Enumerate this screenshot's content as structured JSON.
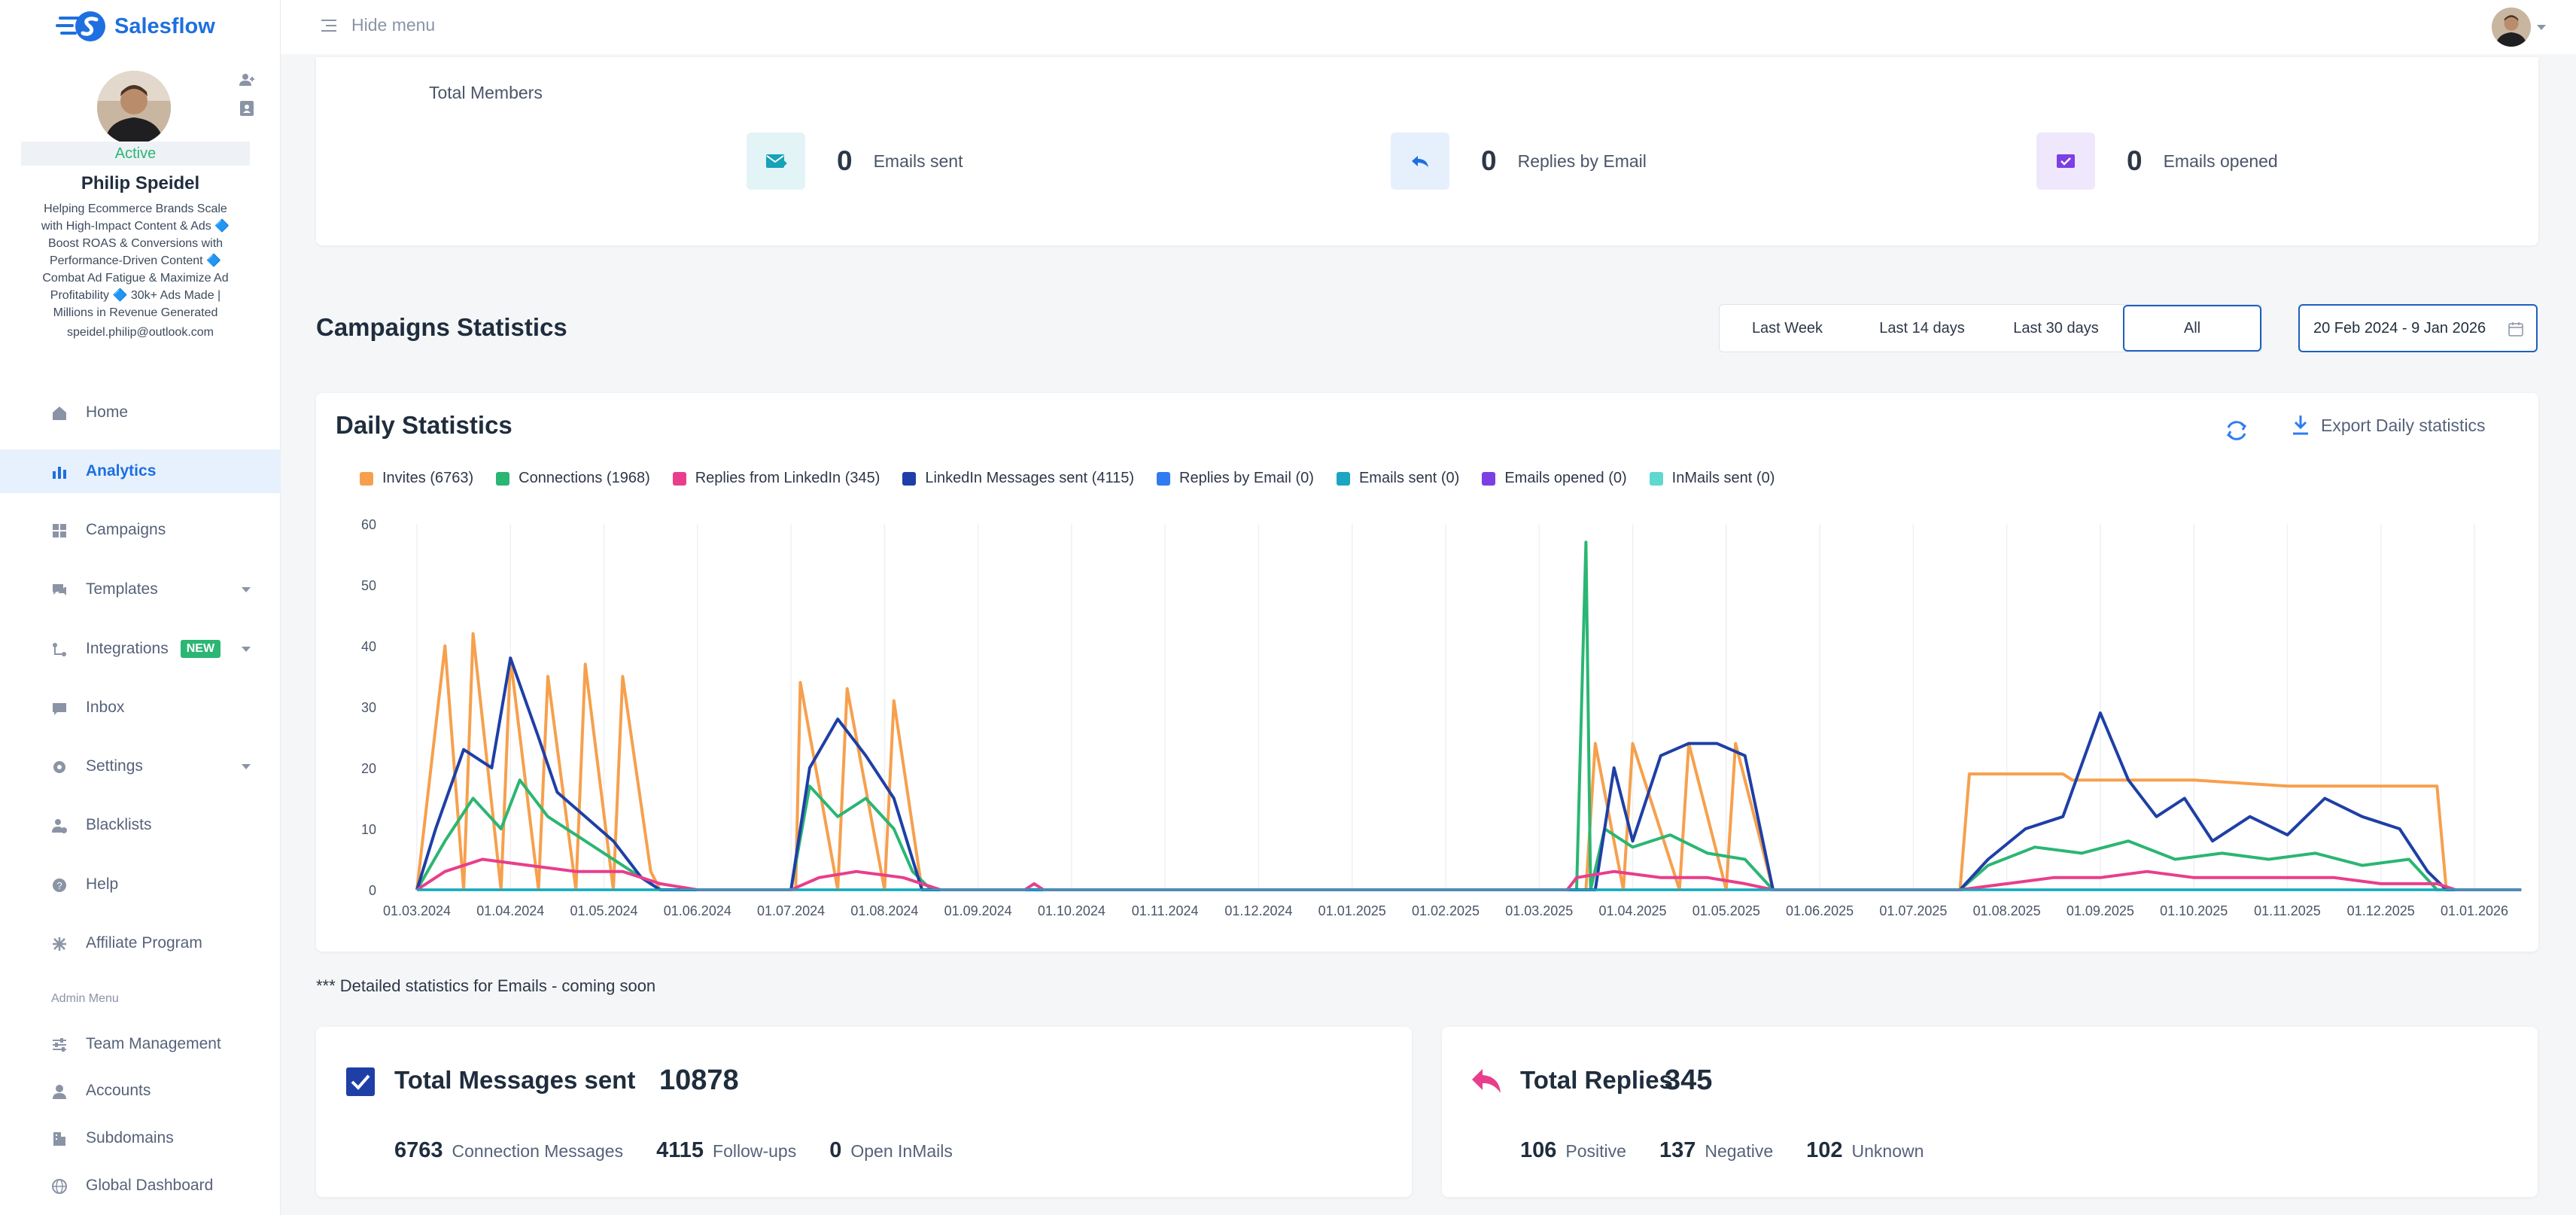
{
  "app": {
    "name": "Salesflow"
  },
  "topbar": {
    "hide_menu": "Hide menu"
  },
  "profile": {
    "status": "Active",
    "name": "Philip Speidel",
    "bio_lines": [
      "Helping Ecommerce Brands Scale",
      "with High-Impact Content & Ads 🔷",
      "Boost ROAS & Conversions with",
      "Performance-Driven Content 🔷",
      "Combat Ad Fatigue & Maximize Ad",
      "Profitability 🔷 30k+ Ads Made |",
      "Millions in Revenue Generated"
    ],
    "email": "speidel.philip@outlook.com"
  },
  "nav": {
    "items": [
      {
        "label": "Home",
        "icon": "home-icon"
      },
      {
        "label": "Analytics",
        "icon": "bar-chart-icon"
      },
      {
        "label": "Campaigns",
        "icon": "grid-icon"
      },
      {
        "label": "Templates",
        "icon": "chat-icon"
      },
      {
        "label": "Integrations",
        "icon": "integrations-icon",
        "badge": "NEW"
      },
      {
        "label": "Inbox",
        "icon": "inbox-icon"
      },
      {
        "label": "Settings",
        "icon": "gear-icon"
      },
      {
        "label": "Blacklists",
        "icon": "user-block-icon"
      },
      {
        "label": "Help",
        "icon": "help-icon"
      },
      {
        "label": "Affiliate Program",
        "icon": "affiliate-icon"
      }
    ],
    "admin_label": "Admin Menu",
    "admin_items": [
      {
        "label": "Team Management",
        "icon": "sliders-icon"
      },
      {
        "label": "Accounts",
        "icon": "user-icon"
      },
      {
        "label": "Subdomains",
        "icon": "building-icon"
      },
      {
        "label": "Global Dashboard",
        "icon": "globe-icon"
      }
    ]
  },
  "members": {
    "total_label": "Total Members",
    "stats": [
      {
        "value": "0",
        "label": "Emails sent",
        "color": "#17a2b8",
        "bg": "#e3f4f7"
      },
      {
        "value": "0",
        "label": "Replies by Email",
        "color": "#1e6fe0",
        "bg": "#e6f0fd"
      },
      {
        "value": "0",
        "label": "Emails opened",
        "color": "#7b3fe4",
        "bg": "#efe7fc"
      }
    ]
  },
  "campaigns": {
    "title": "Campaigns Statistics",
    "ranges": [
      "Last Week",
      "Last 14 days",
      "Last 30 days",
      "All"
    ],
    "selected_range": "All",
    "date_range": "20 Feb 2024 - 9 Jan 2026"
  },
  "daily": {
    "title": "Daily Statistics",
    "export_label": "Export Daily statistics"
  },
  "chart_data": {
    "type": "line",
    "title": "Daily Statistics",
    "xlabel": "",
    "ylabel": "",
    "ylim": [
      0,
      60
    ],
    "yticks": [
      0,
      10,
      20,
      30,
      40,
      50,
      60
    ],
    "xticks": [
      "01.03.2024",
      "01.04.2024",
      "01.05.2024",
      "01.06.2024",
      "01.07.2024",
      "01.08.2024",
      "01.09.2024",
      "01.10.2024",
      "01.11.2024",
      "01.12.2024",
      "01.01.2025",
      "01.02.2025",
      "01.03.2025",
      "01.04.2025",
      "01.05.2025",
      "01.06.2025",
      "01.07.2025",
      "01.08.2025",
      "01.09.2025",
      "01.10.2025",
      "01.11.2025",
      "01.12.2025",
      "01.01.2026"
    ],
    "grid": true,
    "legend_position": "top-left",
    "series": [
      {
        "name": "Invites (6763)",
        "color": "#f6a04d",
        "points": [
          [
            0.0,
            0
          ],
          [
            0.3,
            40
          ],
          [
            0.5,
            0
          ],
          [
            0.6,
            42
          ],
          [
            0.9,
            0
          ],
          [
            1.0,
            38
          ],
          [
            1.3,
            0
          ],
          [
            1.4,
            35
          ],
          [
            1.7,
            0
          ],
          [
            1.8,
            37
          ],
          [
            2.1,
            0
          ],
          [
            2.2,
            35
          ],
          [
            2.5,
            3
          ],
          [
            2.6,
            0
          ],
          [
            4.05,
            0
          ],
          [
            4.1,
            34
          ],
          [
            4.5,
            0
          ],
          [
            4.6,
            33
          ],
          [
            5.0,
            0
          ],
          [
            5.1,
            31
          ],
          [
            5.4,
            0
          ],
          [
            12.5,
            0
          ],
          [
            12.6,
            24
          ],
          [
            12.9,
            0
          ],
          [
            13.0,
            24
          ],
          [
            13.5,
            0
          ],
          [
            13.6,
            24
          ],
          [
            14.0,
            0
          ],
          [
            14.1,
            24
          ],
          [
            14.5,
            0
          ],
          [
            16.5,
            0
          ],
          [
            16.6,
            19
          ],
          [
            17.6,
            19
          ],
          [
            17.7,
            18
          ],
          [
            19.0,
            18
          ],
          [
            20.0,
            17
          ],
          [
            21.0,
            17
          ],
          [
            21.6,
            17
          ],
          [
            21.7,
            0
          ],
          [
            22.5,
            0
          ]
        ]
      },
      {
        "name": "Connections (1968)",
        "color": "#2bb673",
        "points": [
          [
            0.0,
            0
          ],
          [
            0.3,
            8
          ],
          [
            0.6,
            15
          ],
          [
            0.9,
            10
          ],
          [
            1.1,
            18
          ],
          [
            1.4,
            12
          ],
          [
            1.7,
            9
          ],
          [
            2.0,
            6
          ],
          [
            2.3,
            3
          ],
          [
            2.6,
            0
          ],
          [
            4.0,
            0
          ],
          [
            4.2,
            17
          ],
          [
            4.5,
            12
          ],
          [
            4.8,
            15
          ],
          [
            5.1,
            10
          ],
          [
            5.3,
            3
          ],
          [
            5.5,
            0
          ],
          [
            12.4,
            0
          ],
          [
            12.5,
            57
          ],
          [
            12.55,
            0
          ],
          [
            12.7,
            10
          ],
          [
            13.0,
            7
          ],
          [
            13.4,
            9
          ],
          [
            13.8,
            6
          ],
          [
            14.2,
            5
          ],
          [
            14.5,
            0
          ],
          [
            16.5,
            0
          ],
          [
            16.8,
            4
          ],
          [
            17.3,
            7
          ],
          [
            17.8,
            6
          ],
          [
            18.3,
            8
          ],
          [
            18.8,
            5
          ],
          [
            19.3,
            6
          ],
          [
            19.8,
            5
          ],
          [
            20.3,
            6
          ],
          [
            20.8,
            4
          ],
          [
            21.3,
            5
          ],
          [
            21.6,
            0
          ],
          [
            22.5,
            0
          ]
        ]
      },
      {
        "name": "Replies from LinkedIn (345)",
        "color": "#e83e8c",
        "points": [
          [
            0.0,
            0
          ],
          [
            0.3,
            3
          ],
          [
            0.7,
            5
          ],
          [
            1.2,
            4
          ],
          [
            1.7,
            3
          ],
          [
            2.2,
            3
          ],
          [
            2.6,
            1
          ],
          [
            3.0,
            0
          ],
          [
            4.0,
            0
          ],
          [
            4.3,
            2
          ],
          [
            4.7,
            3
          ],
          [
            5.2,
            2
          ],
          [
            5.6,
            0
          ],
          [
            6.5,
            0
          ],
          [
            6.6,
            1
          ],
          [
            6.7,
            0
          ],
          [
            12.3,
            0
          ],
          [
            12.4,
            2
          ],
          [
            12.8,
            3
          ],
          [
            13.3,
            2
          ],
          [
            13.8,
            2
          ],
          [
            14.2,
            1
          ],
          [
            14.5,
            0
          ],
          [
            16.5,
            0
          ],
          [
            17.0,
            1
          ],
          [
            17.5,
            2
          ],
          [
            18.0,
            2
          ],
          [
            18.5,
            3
          ],
          [
            19.0,
            2
          ],
          [
            19.5,
            2
          ],
          [
            20.0,
            2
          ],
          [
            20.5,
            2
          ],
          [
            21.0,
            1
          ],
          [
            21.6,
            1
          ],
          [
            21.8,
            0
          ],
          [
            22.5,
            0
          ]
        ]
      },
      {
        "name": "LinkedIn Messages sent (4115)",
        "color": "#1e3fa6",
        "points": [
          [
            0.0,
            0
          ],
          [
            0.2,
            10
          ],
          [
            0.5,
            23
          ],
          [
            0.8,
            20
          ],
          [
            1.0,
            38
          ],
          [
            1.3,
            25
          ],
          [
            1.5,
            16
          ],
          [
            1.8,
            12
          ],
          [
            2.1,
            8
          ],
          [
            2.4,
            2
          ],
          [
            2.6,
            0
          ],
          [
            4.0,
            0
          ],
          [
            4.2,
            20
          ],
          [
            4.5,
            28
          ],
          [
            4.8,
            22
          ],
          [
            5.1,
            15
          ],
          [
            5.3,
            5
          ],
          [
            5.4,
            0
          ],
          [
            12.6,
            0
          ],
          [
            12.8,
            20
          ],
          [
            13.0,
            8
          ],
          [
            13.3,
            22
          ],
          [
            13.6,
            24
          ],
          [
            13.9,
            24
          ],
          [
            14.2,
            22
          ],
          [
            14.5,
            0
          ],
          [
            16.5,
            0
          ],
          [
            16.8,
            5
          ],
          [
            17.2,
            10
          ],
          [
            17.6,
            12
          ],
          [
            18.0,
            29
          ],
          [
            18.3,
            18
          ],
          [
            18.6,
            12
          ],
          [
            18.9,
            15
          ],
          [
            19.2,
            8
          ],
          [
            19.6,
            12
          ],
          [
            20.0,
            9
          ],
          [
            20.4,
            15
          ],
          [
            20.8,
            12
          ],
          [
            21.2,
            10
          ],
          [
            21.5,
            3
          ],
          [
            21.7,
            0
          ],
          [
            22.5,
            0
          ]
        ]
      },
      {
        "name": "Replies by Email (0)",
        "color": "#2f7bf3",
        "points": [
          [
            0,
            0
          ],
          [
            22.5,
            0
          ]
        ]
      },
      {
        "name": "Emails sent (0)",
        "color": "#1aa5c0",
        "points": [
          [
            0,
            0
          ],
          [
            22.5,
            0
          ]
        ]
      },
      {
        "name": "Emails opened (0)",
        "color": "#7b3fe4",
        "points": [
          [
            0,
            0
          ],
          [
            22.5,
            0
          ]
        ]
      },
      {
        "name": "InMails sent (0)",
        "color": "#5fd8cf",
        "points": [
          [
            0,
            0
          ],
          [
            22.5,
            0
          ]
        ]
      }
    ]
  },
  "note": "*** Detailed statistics for Emails - coming soon",
  "totals": {
    "messages": {
      "title": "Total Messages sent",
      "value": "10878",
      "parts": [
        {
          "value": "6763",
          "label": "Connection Messages"
        },
        {
          "value": "4115",
          "label": "Follow-ups"
        },
        {
          "value": "0",
          "label": "Open InMails"
        }
      ]
    },
    "replies": {
      "title": "Total Replies",
      "value": "345",
      "parts": [
        {
          "value": "106",
          "label": "Positive"
        },
        {
          "value": "137",
          "label": "Negative"
        },
        {
          "value": "102",
          "label": "Unknown"
        }
      ]
    }
  }
}
